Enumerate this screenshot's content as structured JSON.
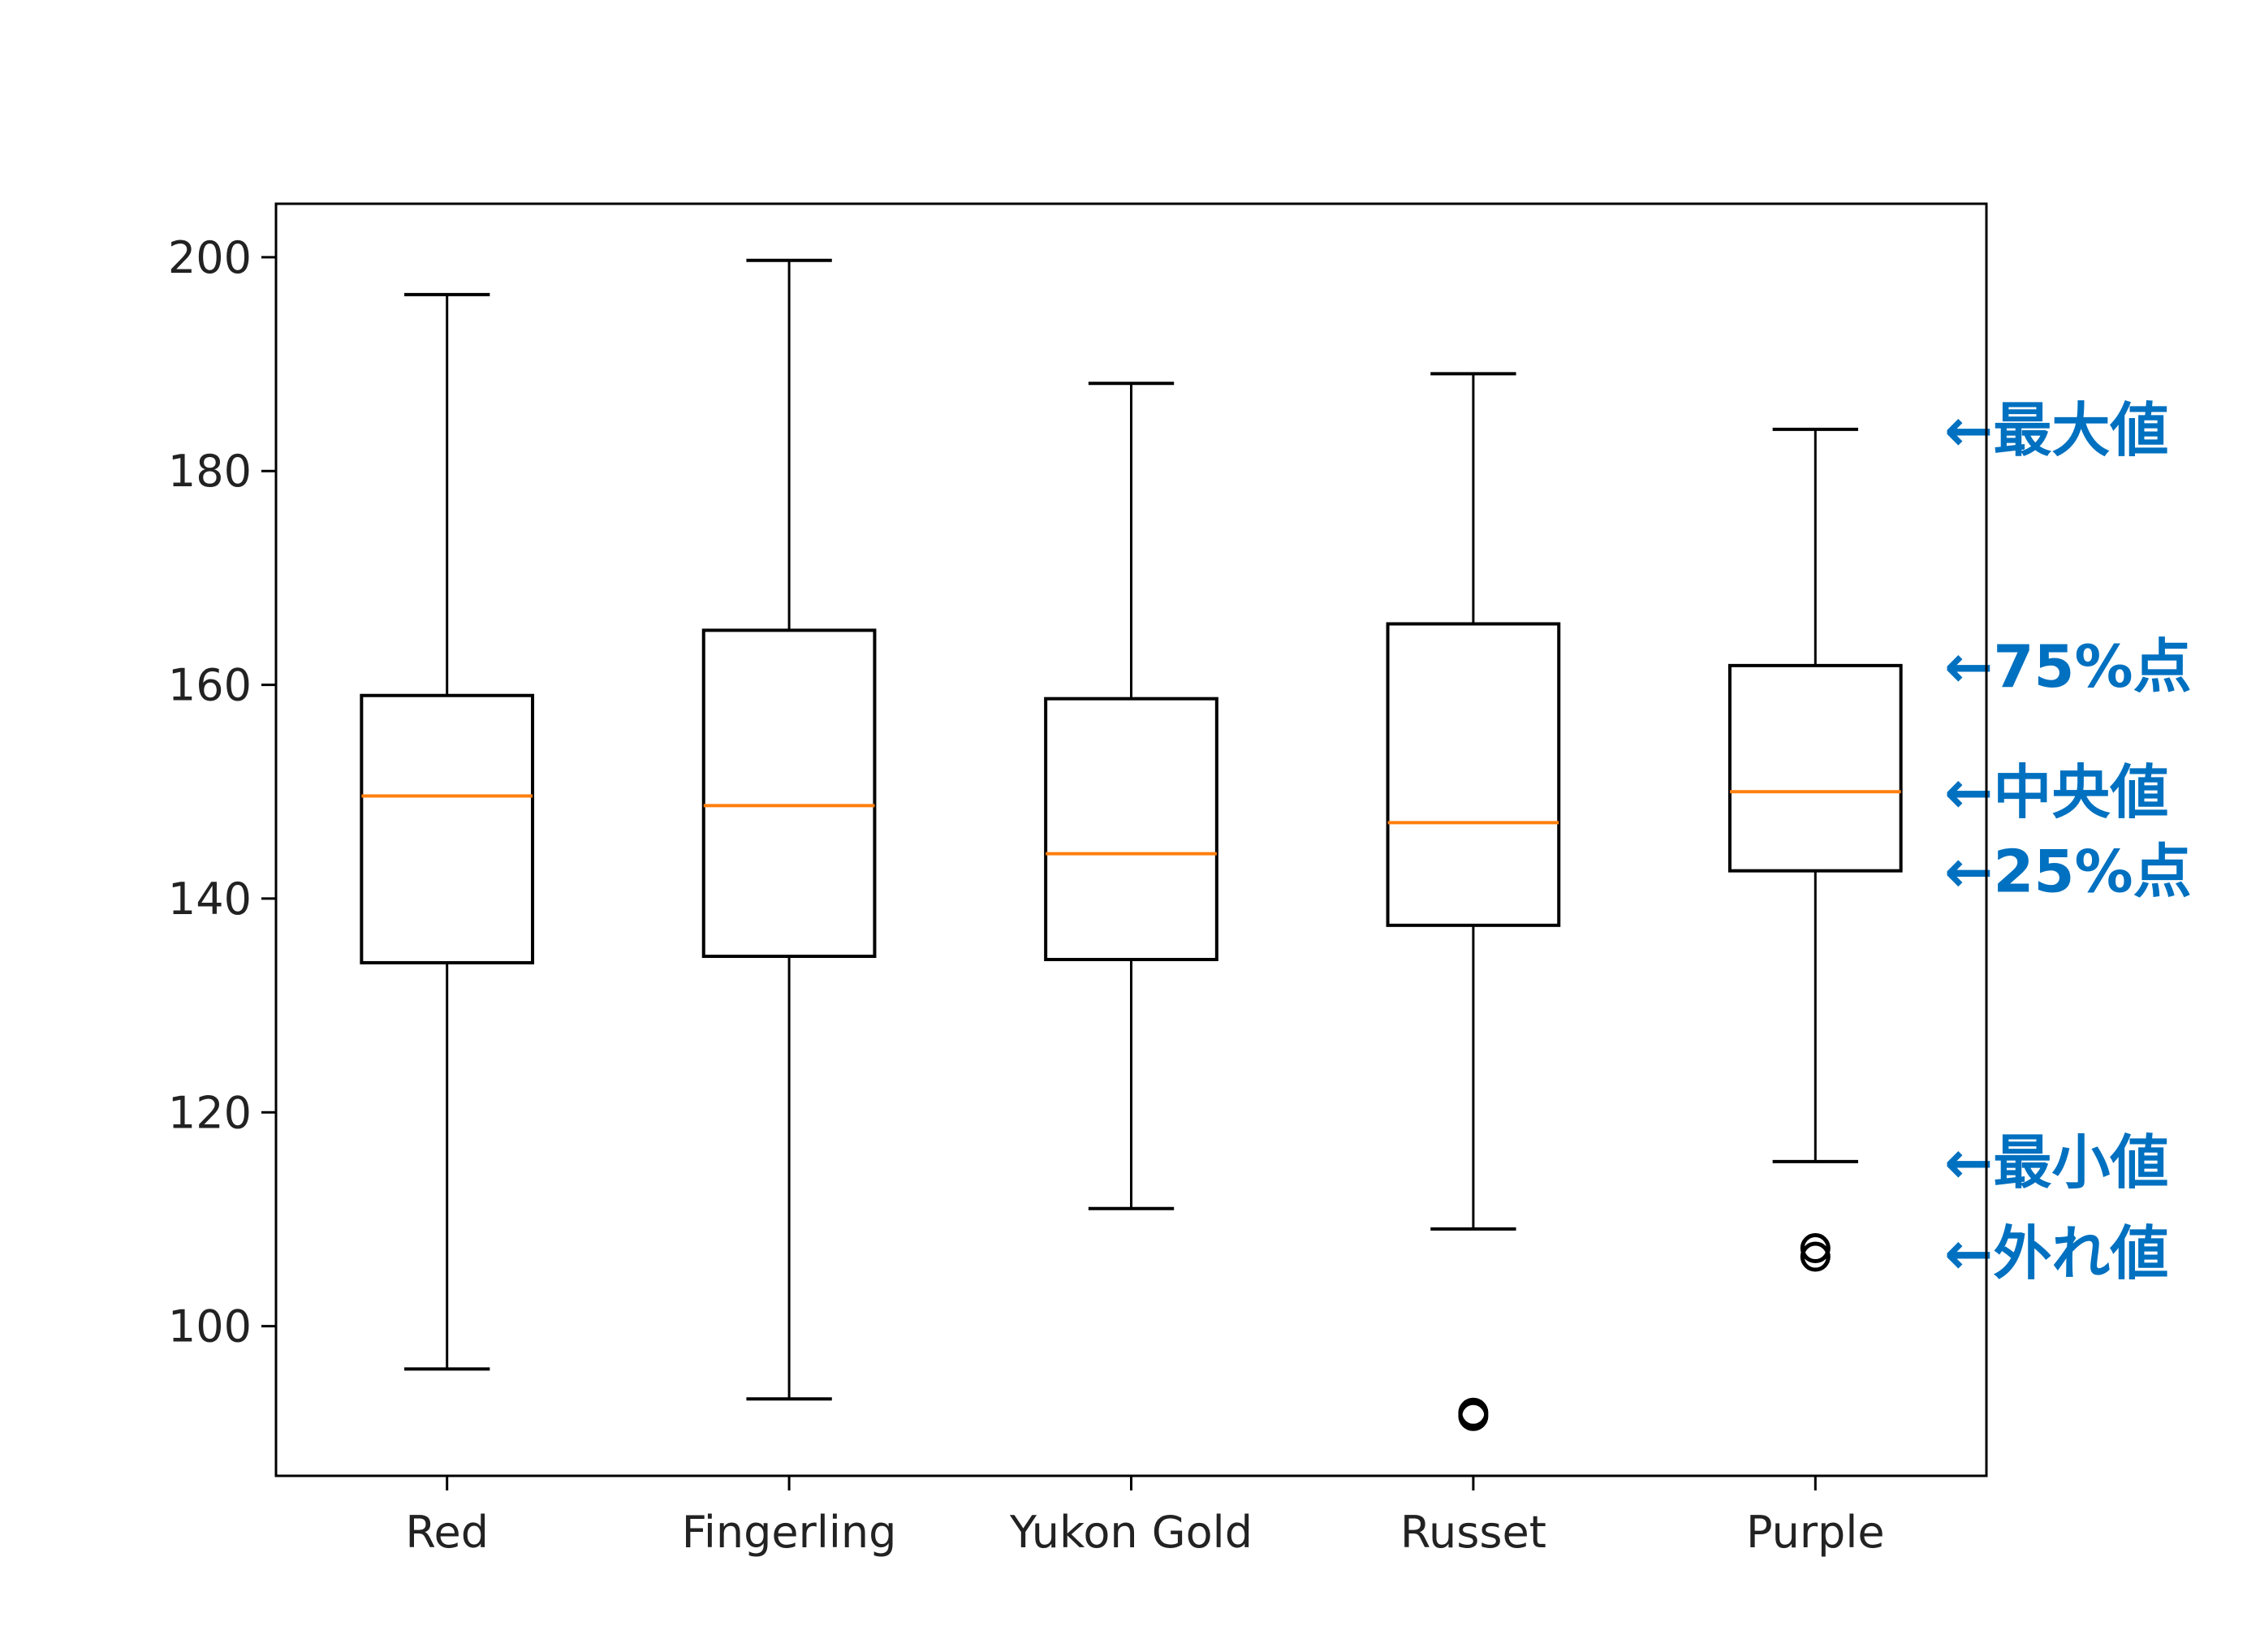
{
  "colors": {
    "box": "#000000",
    "median": "#ff7f0e",
    "annotation": "#0070c0",
    "frame": "#000000"
  },
  "chart_data": {
    "type": "boxplot",
    "title": "",
    "xlabel": "",
    "ylabel": "",
    "ylim": [
      86,
      205
    ],
    "yticks": [
      100,
      120,
      140,
      160,
      180,
      200
    ],
    "categories": [
      "Red",
      "Fingerling",
      "Yukon Gold",
      "Russet",
      "Purple"
    ],
    "boxes": [
      {
        "name": "Red",
        "whisker_low": 96.0,
        "q1": 134.0,
        "median": 149.6,
        "q3": 159.0,
        "whisker_high": 196.5,
        "outliers": []
      },
      {
        "name": "Fingerling",
        "whisker_low": 93.2,
        "q1": 134.6,
        "median": 148.7,
        "q3": 165.1,
        "whisker_high": 199.7,
        "outliers": []
      },
      {
        "name": "Yukon Gold",
        "whisker_low": 111.0,
        "q1": 134.3,
        "median": 144.2,
        "q3": 158.7,
        "whisker_high": 188.2,
        "outliers": []
      },
      {
        "name": "Russet",
        "whisker_low": 109.1,
        "q1": 137.5,
        "median": 147.1,
        "q3": 165.7,
        "whisker_high": 189.1,
        "outliers": [
          91.6,
          91.9
        ]
      },
      {
        "name": "Purple",
        "whisker_low": 115.4,
        "q1": 142.6,
        "median": 150.0,
        "q3": 161.8,
        "whisker_high": 183.9,
        "outliers": [
          106.5,
          107.3
        ]
      }
    ],
    "annotations": [
      {
        "label": "←最大値",
        "value": 183.9
      },
      {
        "label": "←75%点",
        "value": 161.8
      },
      {
        "label": "←中央値",
        "value": 150.0
      },
      {
        "label": "←25%点",
        "value": 142.6
      },
      {
        "label": "←最小値",
        "value": 115.4
      },
      {
        "label": "←外れ値",
        "value": 106.9
      }
    ]
  }
}
